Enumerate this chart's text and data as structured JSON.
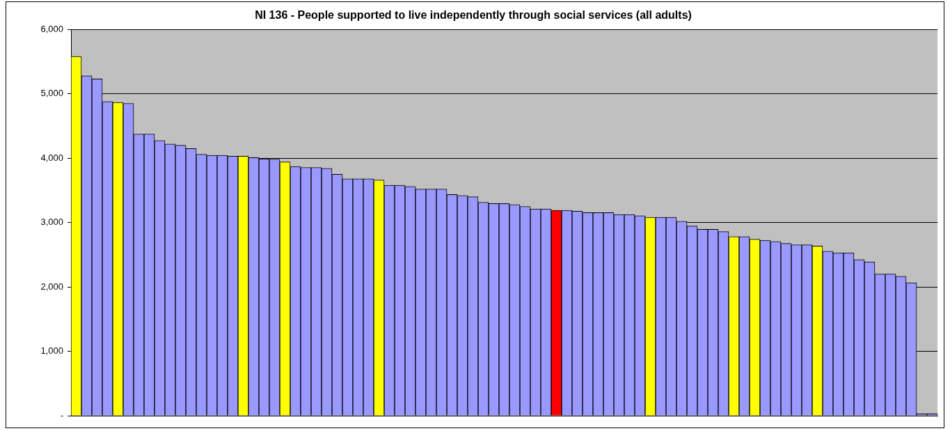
{
  "chart_data": {
    "type": "bar",
    "title": "NI 136 - People supported to live independently through social services (all adults)",
    "categories": [
      null,
      null,
      null,
      null,
      null,
      null,
      null,
      null,
      null,
      null,
      null,
      null,
      null,
      null,
      null,
      null,
      null,
      null,
      null,
      null,
      null,
      null,
      null,
      null,
      null,
      null,
      null,
      null,
      null,
      null,
      null,
      null,
      null,
      null,
      null,
      null,
      null,
      null,
      null,
      null,
      null,
      null,
      null,
      null,
      null,
      null,
      null,
      null,
      null,
      null,
      null,
      null,
      null,
      null,
      null,
      null,
      null,
      null,
      null,
      null,
      null,
      null,
      null,
      null,
      null,
      null,
      null,
      null,
      null,
      null,
      null,
      null,
      null,
      null,
      null,
      null,
      null,
      null,
      null,
      null,
      null,
      null,
      null
    ],
    "values": [
      5580,
      5280,
      5230,
      4880,
      4865,
      4850,
      4375,
      4375,
      4275,
      4220,
      4200,
      4150,
      4060,
      4045,
      4045,
      4030,
      4030,
      4010,
      3990,
      3985,
      3940,
      3870,
      3855,
      3855,
      3840,
      3750,
      3680,
      3680,
      3680,
      3660,
      3580,
      3580,
      3560,
      3520,
      3520,
      3520,
      3435,
      3420,
      3400,
      3315,
      3295,
      3295,
      3280,
      3250,
      3210,
      3210,
      3190,
      3190,
      3175,
      3155,
      3155,
      3155,
      3125,
      3125,
      3105,
      3080,
      3080,
      3080,
      3020,
      2945,
      2895,
      2895,
      2860,
      2780,
      2780,
      2740,
      2725,
      2705,
      2675,
      2655,
      2655,
      2635,
      2555,
      2530,
      2530,
      2425,
      2390,
      2200,
      2200,
      2165,
      2065,
      30,
      30
    ],
    "colors": [
      "#ffff00",
      "#9999ff",
      "#9999ff",
      "#9999ff",
      "#ffff00",
      "#9999ff",
      "#9999ff",
      "#9999ff",
      "#9999ff",
      "#9999ff",
      "#9999ff",
      "#9999ff",
      "#9999ff",
      "#9999ff",
      "#9999ff",
      "#9999ff",
      "#ffff00",
      "#9999ff",
      "#9999ff",
      "#9999ff",
      "#ffff00",
      "#9999ff",
      "#9999ff",
      "#9999ff",
      "#9999ff",
      "#9999ff",
      "#9999ff",
      "#9999ff",
      "#9999ff",
      "#ffff00",
      "#9999ff",
      "#9999ff",
      "#9999ff",
      "#9999ff",
      "#9999ff",
      "#9999ff",
      "#9999ff",
      "#9999ff",
      "#9999ff",
      "#9999ff",
      "#9999ff",
      "#9999ff",
      "#9999ff",
      "#9999ff",
      "#9999ff",
      "#9999ff",
      "#ff0000",
      "#9999ff",
      "#9999ff",
      "#9999ff",
      "#9999ff",
      "#9999ff",
      "#9999ff",
      "#9999ff",
      "#9999ff",
      "#ffff00",
      "#9999ff",
      "#9999ff",
      "#9999ff",
      "#9999ff",
      "#9999ff",
      "#9999ff",
      "#9999ff",
      "#ffff00",
      "#9999ff",
      "#ffff00",
      "#9999ff",
      "#9999ff",
      "#9999ff",
      "#9999ff",
      "#9999ff",
      "#ffff00",
      "#9999ff",
      "#9999ff",
      "#9999ff",
      "#9999ff",
      "#9999ff",
      "#9999ff",
      "#9999ff",
      "#9999ff",
      "#9999ff",
      "#9999ff",
      "#9999ff"
    ],
    "ylim": [
      0,
      6000
    ],
    "yticks": [
      {
        "value": 0,
        "label": "-"
      },
      {
        "value": 1000,
        "label": "1,000"
      },
      {
        "value": 2000,
        "label": "2,000"
      },
      {
        "value": 3000,
        "label": "3,000"
      },
      {
        "value": 4000,
        "label": "4,000"
      },
      {
        "value": 5000,
        "label": "5,000"
      },
      {
        "value": 6000,
        "label": "6,000"
      }
    ],
    "grid": "y",
    "legend": false
  }
}
